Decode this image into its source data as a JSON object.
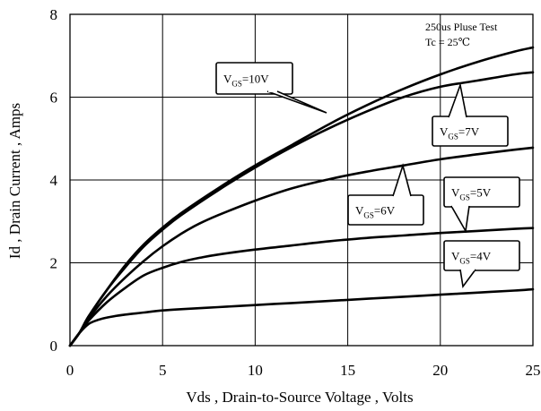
{
  "chart_data": {
    "type": "line",
    "title": "",
    "xlabel": "Vds , Drain-to-Source Voltage , Volts",
    "ylabel": "Id , Drain Current , Amps",
    "xlim": [
      0,
      25
    ],
    "ylim": [
      0,
      8
    ],
    "xticks": [
      "0",
      "5",
      "10",
      "15",
      "20",
      "25"
    ],
    "yticks": [
      "0",
      "2",
      "4",
      "6",
      "8"
    ],
    "grid": true,
    "annotations": [
      "250us Pluse Test",
      "Tc = 25℃"
    ],
    "series": [
      {
        "name": "VGS=10V",
        "sym": "V",
        "sub": "GS",
        "tail": "=10V",
        "x": [
          0,
          0.5,
          1,
          2,
          3,
          4,
          5,
          6,
          8,
          10,
          12,
          14,
          16,
          18,
          20,
          22,
          24,
          25
        ],
        "y": [
          0,
          0.3,
          0.7,
          1.35,
          1.95,
          2.45,
          2.85,
          3.2,
          3.8,
          4.35,
          4.85,
          5.35,
          5.8,
          6.2,
          6.55,
          6.85,
          7.1,
          7.2
        ]
      },
      {
        "name": "VGS=7V",
        "sym": "V",
        "sub": "GS",
        "tail": "=7V",
        "x": [
          0,
          0.5,
          1,
          2,
          3,
          4,
          5,
          6,
          8,
          10,
          12,
          14,
          16,
          18,
          20,
          22,
          24,
          25
        ],
        "y": [
          0,
          0.3,
          0.7,
          1.35,
          1.9,
          2.4,
          2.8,
          3.15,
          3.75,
          4.3,
          4.8,
          5.25,
          5.65,
          6.0,
          6.25,
          6.4,
          6.55,
          6.6
        ]
      },
      {
        "name": "VGS=6V",
        "sym": "V",
        "sub": "GS",
        "tail": "=6V",
        "x": [
          0,
          0.5,
          1,
          2,
          3,
          4,
          5,
          6,
          7,
          8,
          10,
          12,
          14,
          16,
          18,
          20,
          22,
          24,
          25
        ],
        "y": [
          0,
          0.3,
          0.65,
          1.2,
          1.65,
          2.05,
          2.4,
          2.7,
          2.95,
          3.15,
          3.5,
          3.8,
          4.02,
          4.2,
          4.35,
          4.5,
          4.62,
          4.73,
          4.78
        ]
      },
      {
        "name": "VGS=5V",
        "sym": "V",
        "sub": "GS",
        "tail": "=5V",
        "x": [
          0,
          0.5,
          1,
          2,
          3,
          4,
          5,
          6,
          7,
          8,
          10,
          12,
          14,
          16,
          18,
          20,
          22,
          24,
          25
        ],
        "y": [
          0,
          0.3,
          0.6,
          1.05,
          1.4,
          1.7,
          1.88,
          2.02,
          2.12,
          2.2,
          2.32,
          2.42,
          2.52,
          2.6,
          2.66,
          2.72,
          2.77,
          2.82,
          2.84
        ]
      },
      {
        "name": "VGS=4V",
        "sym": "V",
        "sub": "GS",
        "tail": "=4V",
        "x": [
          0,
          0.5,
          1,
          1.5,
          2,
          3,
          4,
          5,
          6,
          8,
          10,
          12,
          14,
          16,
          18,
          20,
          22,
          24,
          25
        ],
        "y": [
          0,
          0.3,
          0.52,
          0.62,
          0.68,
          0.75,
          0.8,
          0.85,
          0.88,
          0.93,
          0.98,
          1.03,
          1.08,
          1.13,
          1.18,
          1.23,
          1.28,
          1.33,
          1.36
        ]
      }
    ]
  }
}
